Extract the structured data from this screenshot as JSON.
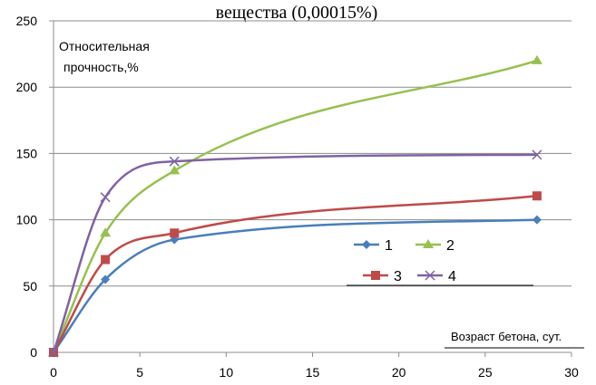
{
  "chart_data": {
    "type": "line",
    "title_fragment": "вещества (0,00015%)",
    "ylabel": "Относительная прочность,%",
    "xlabel": "Возраст бетона, сут.",
    "xlim": [
      0,
      30
    ],
    "ylim": [
      0,
      250
    ],
    "x_ticks": [
      "0",
      "5",
      "10",
      "15",
      "20",
      "25",
      "30"
    ],
    "y_ticks": [
      "0",
      "50",
      "100",
      "150",
      "200",
      "250"
    ],
    "grid": "horizontal",
    "legend": "center-right",
    "x": [
      0,
      3,
      7,
      28
    ],
    "series": [
      {
        "name": "1",
        "values": [
          0,
          55,
          85,
          100
        ],
        "color": "#4a7ebb",
        "marker": "diamond"
      },
      {
        "name": "2",
        "values": [
          0,
          90,
          137,
          220
        ],
        "color": "#98c04f",
        "marker": "triangle"
      },
      {
        "name": "3",
        "values": [
          0,
          70,
          90,
          118
        ],
        "color": "#be4b48",
        "marker": "square"
      },
      {
        "name": "4",
        "values": [
          0,
          117,
          144,
          149
        ],
        "color": "#7f63a2",
        "marker": "x"
      }
    ]
  }
}
